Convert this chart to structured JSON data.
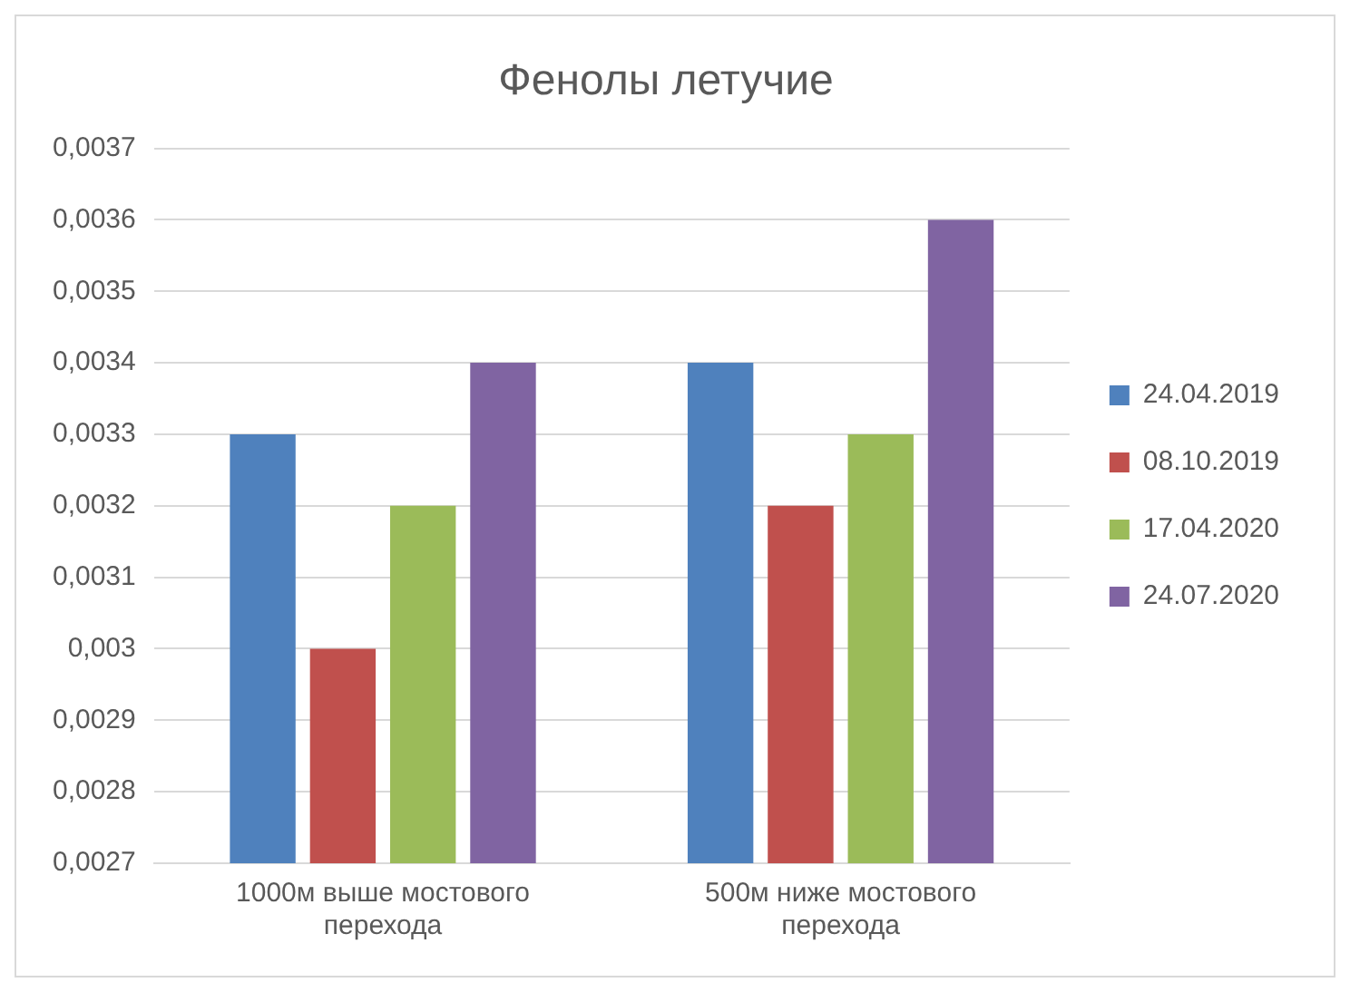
{
  "chart_data": {
    "type": "bar",
    "title": "Фенолы летучие",
    "categories": [
      "1000м выше мостового перехода",
      "500м ниже мостового перехода"
    ],
    "series": [
      {
        "name": "24.04.2019",
        "color": "#4f81bd",
        "values": [
          0.0033,
          0.0034
        ]
      },
      {
        "name": "08.10.2019",
        "color": "#c0504d",
        "values": [
          0.003,
          0.0032
        ]
      },
      {
        "name": "17.04.2020",
        "color": "#9bbb59",
        "values": [
          0.0032,
          0.0033
        ]
      },
      {
        "name": "24.07.2020",
        "color": "#8064a2",
        "values": [
          0.0034,
          0.0036
        ]
      }
    ],
    "ylim": [
      0.0027,
      0.0037
    ],
    "yticks": [
      {
        "value": 0.0027,
        "label": "0,0027"
      },
      {
        "value": 0.0028,
        "label": "0,0028"
      },
      {
        "value": 0.0029,
        "label": "0,0029"
      },
      {
        "value": 0.003,
        "label": "0,003"
      },
      {
        "value": 0.0031,
        "label": "0,0031"
      },
      {
        "value": 0.0032,
        "label": "0,0032"
      },
      {
        "value": 0.0033,
        "label": "0,0033"
      },
      {
        "value": 0.0034,
        "label": "0,0034"
      },
      {
        "value": 0.0035,
        "label": "0,0035"
      },
      {
        "value": 0.0036,
        "label": "0,0036"
      },
      {
        "value": 0.0037,
        "label": "0,0037"
      }
    ],
    "grid": "y",
    "legend": "right"
  }
}
